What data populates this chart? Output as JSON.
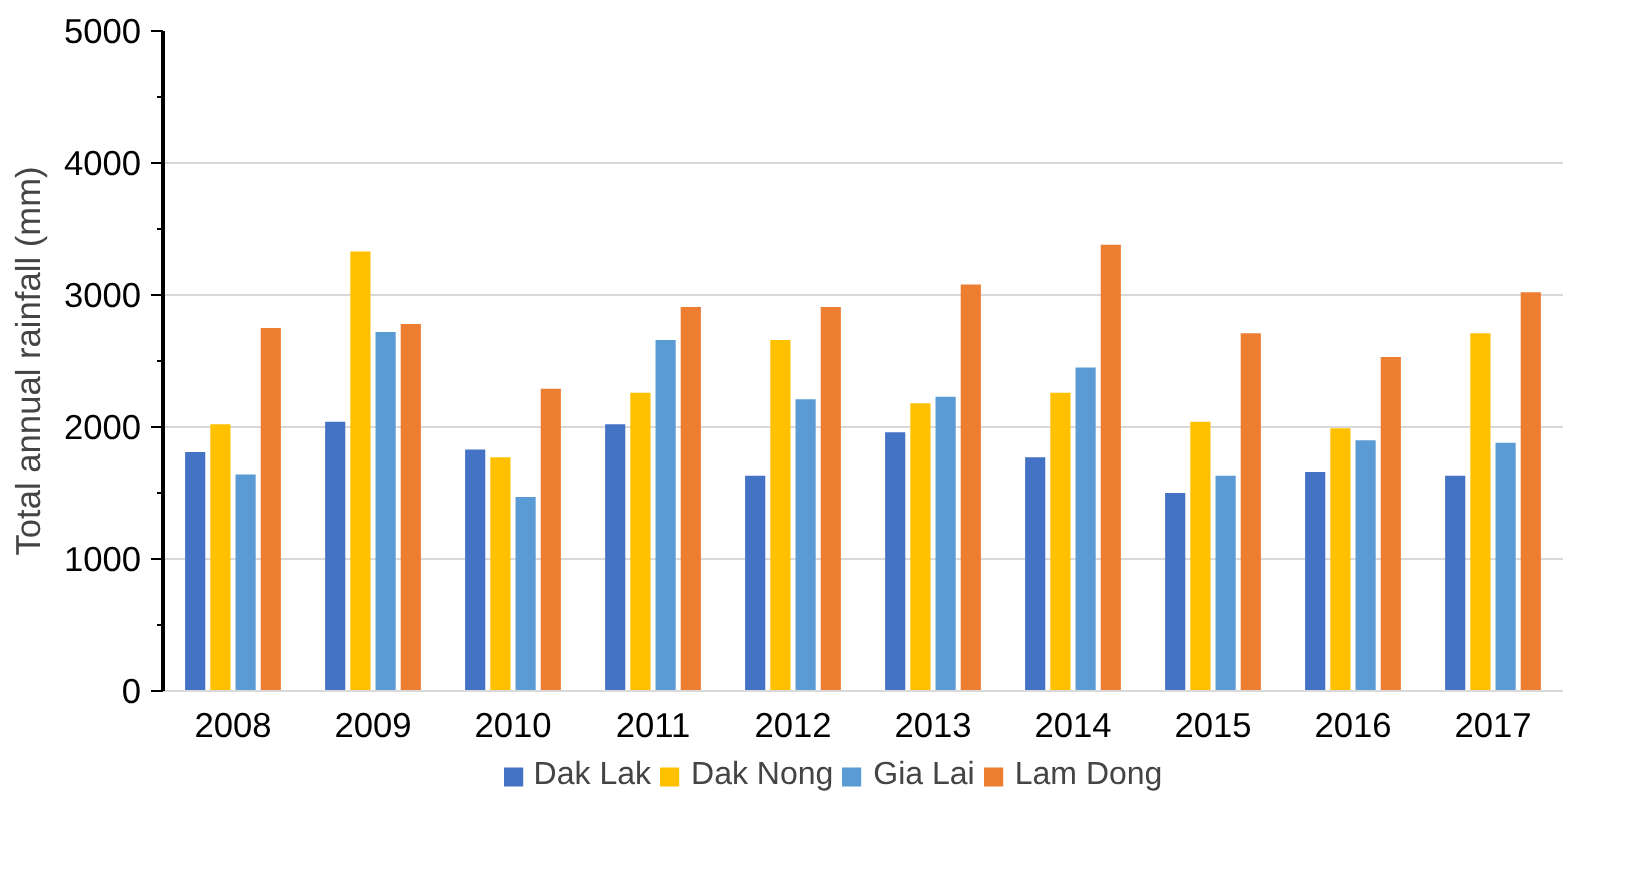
{
  "chart_data": {
    "type": "bar",
    "ylabel": "Total annual rainfall (mm)",
    "categories": [
      "2008",
      "2009",
      "2010",
      "2011",
      "2012",
      "2013",
      "2014",
      "2015",
      "2016",
      "2017"
    ],
    "series": [
      {
        "name": "Dak Lak",
        "color": "#4472c4",
        "values": [
          1810,
          2040,
          1830,
          2020,
          1630,
          1960,
          1770,
          1500,
          1660,
          1630
        ]
      },
      {
        "name": "Dak Nong",
        "color": "#ffc000",
        "values": [
          2020,
          3330,
          1770,
          2260,
          2660,
          2180,
          2260,
          2040,
          1990,
          2710
        ]
      },
      {
        "name": "Gia Lai",
        "color": "#5b9bd5",
        "values": [
          1640,
          2720,
          1470,
          2660,
          2210,
          2230,
          2450,
          1630,
          1900,
          1880
        ]
      },
      {
        "name": "Lam Dong",
        "color": "#ed7d31",
        "values": [
          2750,
          2780,
          2290,
          2910,
          2910,
          3080,
          3380,
          2710,
          2530,
          3020
        ]
      }
    ],
    "ylim": [
      0,
      5000
    ],
    "yticks": [
      0,
      1000,
      2000,
      3000,
      4000,
      5000
    ],
    "grid": "y",
    "legend": "bottom"
  }
}
